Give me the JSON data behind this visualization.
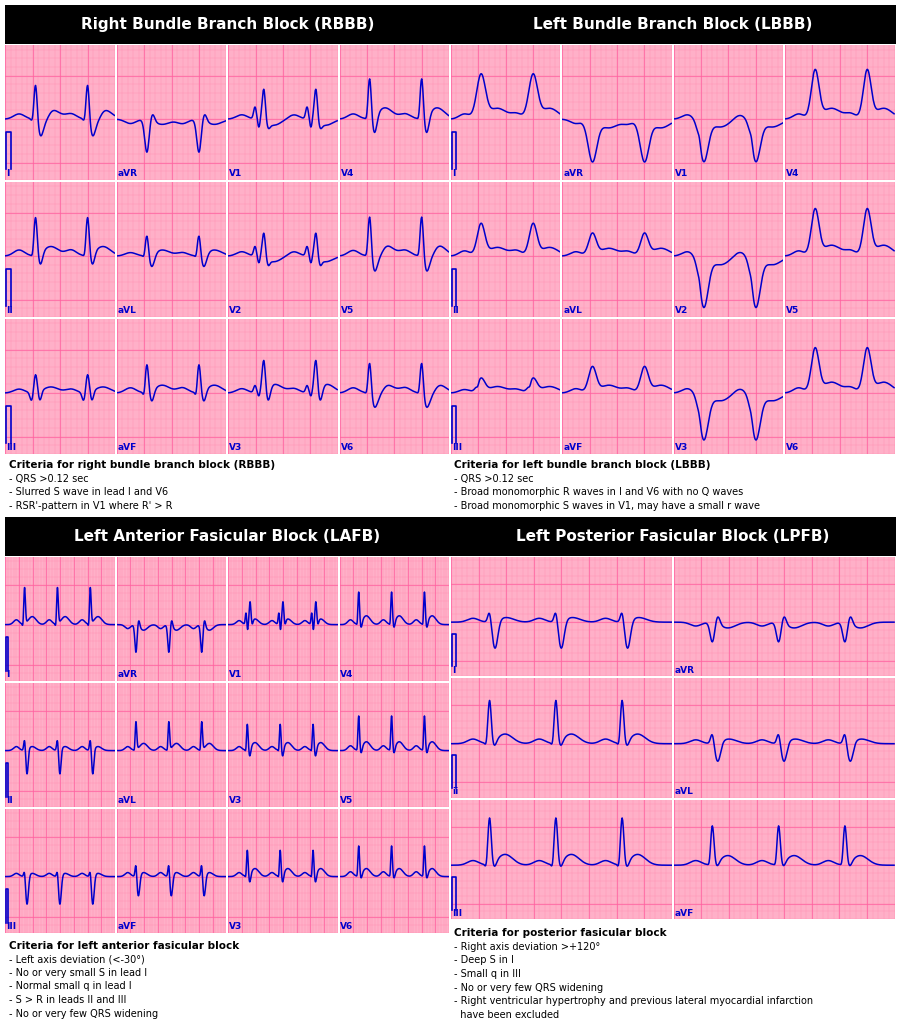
{
  "title_rbbb": "Right Bundle Branch Block (RBBB)",
  "title_lbbb": "Left Bundle Branch Block (LBBB)",
  "title_lafb": "Left Anterior Fasicular Block (LAFB)",
  "title_lpfb": "Left Posterior Fasicular Block (LPFB)",
  "bg_color": "#FFB0C8",
  "ecg_color": "#0000CC",
  "grid_minor_color": "#FF80AA",
  "grid_major_color": "#FF60A0",
  "title_bg": "#000000",
  "title_fg": "#FFFFFF",
  "criteria_rbbb": [
    "Criteria for right bundle branch block (RBBB)",
    "- QRS >0.12 sec",
    "- Slurred S wave in lead I and V6",
    "- RSR'-pattern in V1 where R' > R"
  ],
  "criteria_lbbb": [
    "Criteria for left bundle branch block (LBBB)",
    "- QRS >0.12 sec",
    "- Broad monomorphic R waves in I and V6 with no Q waves",
    "- Broad monomorphic S waves in V1, may have a small r wave"
  ],
  "criteria_lafb": [
    "Criteria for left anterior fasicular block",
    "- Left axis deviation (<-30°)",
    "- No or very small S in lead I",
    "- Normal small q in lead I",
    "- S > R in leads II and III",
    "- No or very few QRS widening"
  ],
  "criteria_lpfb": [
    "Criteria for posterior fasicular block",
    "- Right axis deviation >+120°",
    "- Deep S in I",
    "- Small q in III",
    "- No or very few QRS widening",
    "- Right ventricular hypertrophy and previous lateral myocardial infarction",
    "  have been excluded"
  ]
}
